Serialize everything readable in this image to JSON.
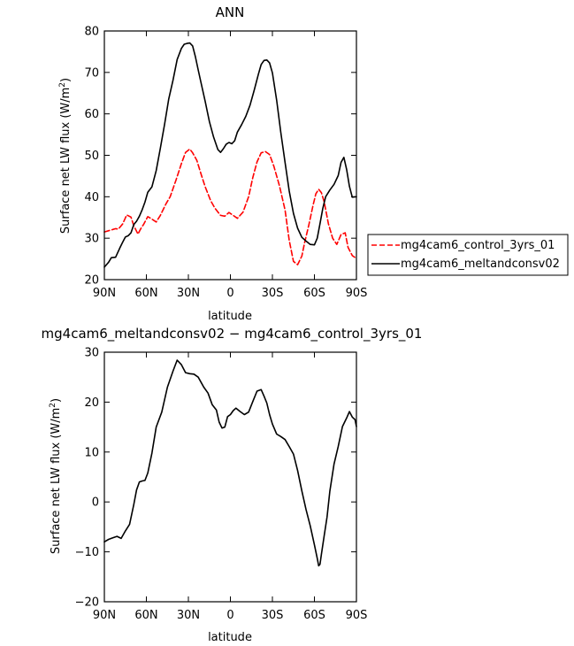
{
  "chart_data": [
    {
      "type": "line",
      "title": "ANN",
      "xlabel": "latitude",
      "ylabel": "Surface net LW flux (W/m²)",
      "xlim": [
        90,
        -90
      ],
      "ylim": [
        20,
        80
      ],
      "xticks": [
        90,
        60,
        30,
        0,
        -30,
        -60,
        -90
      ],
      "xticklabels": [
        "90N",
        "60N",
        "30N",
        "0",
        "30S",
        "60S",
        "90S"
      ],
      "yticks": [
        20,
        30,
        40,
        50,
        60,
        70,
        80
      ],
      "yticklabels": [
        "20",
        "30",
        "40",
        "50",
        "60",
        "70",
        "80"
      ],
      "grid": false,
      "legend_position": "right",
      "series": [
        {
          "name": "mg4cam6_control_3yrs_01",
          "color": "#ff0000",
          "dashed": true,
          "x": [
            90,
            86,
            82,
            80,
            77,
            74,
            71,
            69,
            66,
            64,
            62,
            59,
            56,
            53,
            50,
            46,
            43,
            39,
            35,
            32,
            29,
            27,
            24,
            21,
            18,
            14,
            11,
            7,
            4,
            1,
            -2,
            -5,
            -9,
            -13,
            -16,
            -19,
            -22,
            -25,
            -28,
            -31,
            -35,
            -39,
            -42,
            -45,
            -48,
            -51,
            -53,
            -56,
            -59,
            -61,
            -63,
            -65,
            -67,
            -70,
            -73,
            -76,
            -79,
            -82,
            -84,
            -87,
            -90
          ],
          "y": [
            31.5,
            31.9,
            32.3,
            32.2,
            33.4,
            35.6,
            35.1,
            33.0,
            31.0,
            32.3,
            33.3,
            35.2,
            34.6,
            33.9,
            35.5,
            38.3,
            40.0,
            43.9,
            48.0,
            50.7,
            51.5,
            50.6,
            48.8,
            45.5,
            42.4,
            39.0,
            37.2,
            35.5,
            35.3,
            36.2,
            35.5,
            34.8,
            36.3,
            40.0,
            44.6,
            48.4,
            50.6,
            50.9,
            50.2,
            47.4,
            42.7,
            36.8,
            29.5,
            24.4,
            23.6,
            25.7,
            28.9,
            33.2,
            37.9,
            40.7,
            41.8,
            41.0,
            38.7,
            33.5,
            30.0,
            28.5,
            30.9,
            31.3,
            27.8,
            25.8,
            25.1
          ]
        },
        {
          "name": "mg4cam6_meltandconsv02",
          "color": "#000000",
          "dashed": false,
          "x": [
            90,
            87,
            85,
            82,
            79,
            77,
            75,
            73,
            71,
            69,
            67,
            65,
            63,
            61,
            59,
            56,
            53,
            50,
            47,
            44,
            41,
            38,
            35,
            33,
            31,
            29,
            27,
            25,
            23,
            21,
            18,
            15,
            12,
            9,
            7,
            5,
            3,
            1,
            -1,
            -3,
            -5,
            -8,
            -11,
            -14,
            -17,
            -20,
            -22,
            -24,
            -26,
            -28,
            -30,
            -33,
            -36,
            -39,
            -42,
            -45,
            -48,
            -51,
            -54,
            -57,
            -60,
            -62,
            -64,
            -66,
            -68,
            -71,
            -74,
            -77,
            -79,
            -81,
            -83,
            -85,
            -87,
            -90
          ],
          "y": [
            23.0,
            24.2,
            25.3,
            25.4,
            27.6,
            29.0,
            30.3,
            30.6,
            31.3,
            33.3,
            34.1,
            35.3,
            36.9,
            38.7,
            41.1,
            42.4,
            46.3,
            51.7,
            57.5,
            63.6,
            68.1,
            73.1,
            75.8,
            76.8,
            77.0,
            77.1,
            76.4,
            73.8,
            70.6,
            67.5,
            63.0,
            58.1,
            54.4,
            51.4,
            50.7,
            51.6,
            52.7,
            53.1,
            52.8,
            53.5,
            55.6,
            57.4,
            59.4,
            62.1,
            65.7,
            69.6,
            71.9,
            72.9,
            73.0,
            72.3,
            69.9,
            63.3,
            55.5,
            48.3,
            41.4,
            36.0,
            32.4,
            30.2,
            29.3,
            28.5,
            28.4,
            30.0,
            33.5,
            37.2,
            40.0,
            41.6,
            43.0,
            45.1,
            48.3,
            49.5,
            46.6,
            42.5,
            39.9,
            40.0
          ]
        }
      ]
    },
    {
      "type": "line",
      "title": "mg4cam6_meltandconsv02 − mg4cam6_control_3yrs_01",
      "xlabel": "latitude",
      "ylabel": "Surface net LW flux (W/m²)",
      "xlim": [
        90,
        -90
      ],
      "ylim": [
        -20,
        30
      ],
      "xticks": [
        90,
        60,
        30,
        0,
        -30,
        -60,
        -90
      ],
      "xticklabels": [
        "90N",
        "60N",
        "30N",
        "0",
        "30S",
        "60S",
        "90S"
      ],
      "yticks": [
        -20,
        -10,
        0,
        10,
        20,
        30
      ],
      "yticklabels": [
        "−20",
        "−10",
        "0",
        "10",
        "20",
        "30"
      ],
      "grid": false,
      "series": [
        {
          "color": "#000000",
          "dashed": false,
          "x": [
            90,
            87,
            84,
            81,
            78,
            75,
            72,
            69,
            67,
            65,
            63,
            61,
            59,
            56,
            53,
            49,
            45,
            41,
            38,
            35,
            32,
            29,
            26,
            23,
            19,
            16,
            13,
            10,
            8,
            6,
            4,
            2,
            0,
            -2,
            -4,
            -7,
            -10,
            -13,
            -16,
            -19,
            -22,
            -24,
            -26,
            -28,
            -30,
            -33,
            -36,
            -39,
            -42,
            -45,
            -48,
            -51,
            -54,
            -57,
            -60,
            -62,
            -63,
            -64,
            -65,
            -67,
            -69,
            -71,
            -74,
            -77,
            -80,
            -83,
            -85,
            -87,
            -89,
            -90
          ],
          "y": [
            -8.0,
            -7.5,
            -7.2,
            -6.9,
            -7.3,
            -5.8,
            -4.5,
            -0.5,
            2.4,
            4.0,
            4.2,
            4.3,
            5.8,
            9.8,
            15.0,
            18.0,
            23.0,
            26.2,
            28.4,
            27.5,
            25.9,
            25.7,
            25.6,
            25.0,
            23.0,
            21.8,
            19.5,
            18.4,
            16.0,
            14.8,
            15.0,
            17.1,
            17.5,
            18.3,
            18.8,
            18.1,
            17.5,
            18.0,
            20.1,
            22.2,
            22.5,
            21.2,
            19.8,
            17.5,
            15.6,
            13.6,
            13.1,
            12.5,
            11.1,
            9.6,
            6.3,
            2.2,
            -1.5,
            -4.8,
            -8.6,
            -11.3,
            -12.8,
            -12.5,
            -10.5,
            -6.7,
            -3.0,
            2.1,
            7.6,
            11.1,
            15.1,
            16.8,
            18.1,
            17.0,
            16.5,
            15.1
          ]
        }
      ]
    }
  ],
  "legend": {
    "entries": [
      "mg4cam6_control_3yrs_01",
      "mg4cam6_meltandconsv02"
    ]
  }
}
